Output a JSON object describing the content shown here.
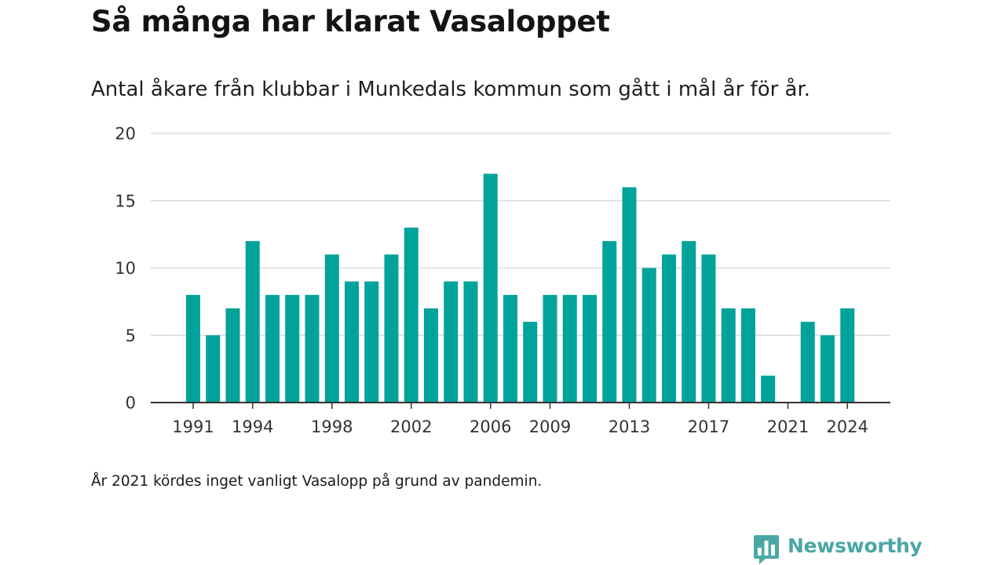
{
  "title": "Så många har klarat Vasaloppet",
  "subtitle": "Antal åkare från klubbar i Munkedals kommun som gått i mål år för år.",
  "note": "År 2021 kördes inget vanligt Vasalopp på grund av pandemin.",
  "brand": {
    "name": "Newsworthy",
    "logo_icon": "bar-chart-speech-bubble-icon",
    "color": "#4aa7a4"
  },
  "colors": {
    "bar": "#00a39a",
    "grid": "#dcdcdc",
    "axis": "#333333"
  },
  "chart_data": {
    "type": "bar",
    "categories": [
      1991,
      1992,
      1993,
      1994,
      1995,
      1996,
      1997,
      1998,
      1999,
      2000,
      2001,
      2002,
      2003,
      2004,
      2005,
      2006,
      2007,
      2008,
      2009,
      2010,
      2011,
      2012,
      2013,
      2014,
      2015,
      2016,
      2017,
      2018,
      2019,
      2020,
      2021,
      2022,
      2023,
      2024
    ],
    "values": [
      8,
      5,
      7,
      12,
      8,
      8,
      8,
      11,
      9,
      9,
      11,
      13,
      7,
      9,
      9,
      17,
      8,
      6,
      8,
      8,
      8,
      12,
      16,
      10,
      11,
      12,
      11,
      7,
      7,
      2,
      0,
      6,
      5,
      7
    ],
    "x_tick_labels": [
      "1991",
      "1994",
      "1998",
      "2002",
      "2006",
      "2009",
      "2013",
      "2017",
      "2021",
      "2024"
    ],
    "y_ticks": [
      0,
      5,
      10,
      15,
      20
    ],
    "ylim": [
      0,
      20
    ],
    "xlabel": "",
    "ylabel": "",
    "grid": true,
    "legend": "none"
  }
}
